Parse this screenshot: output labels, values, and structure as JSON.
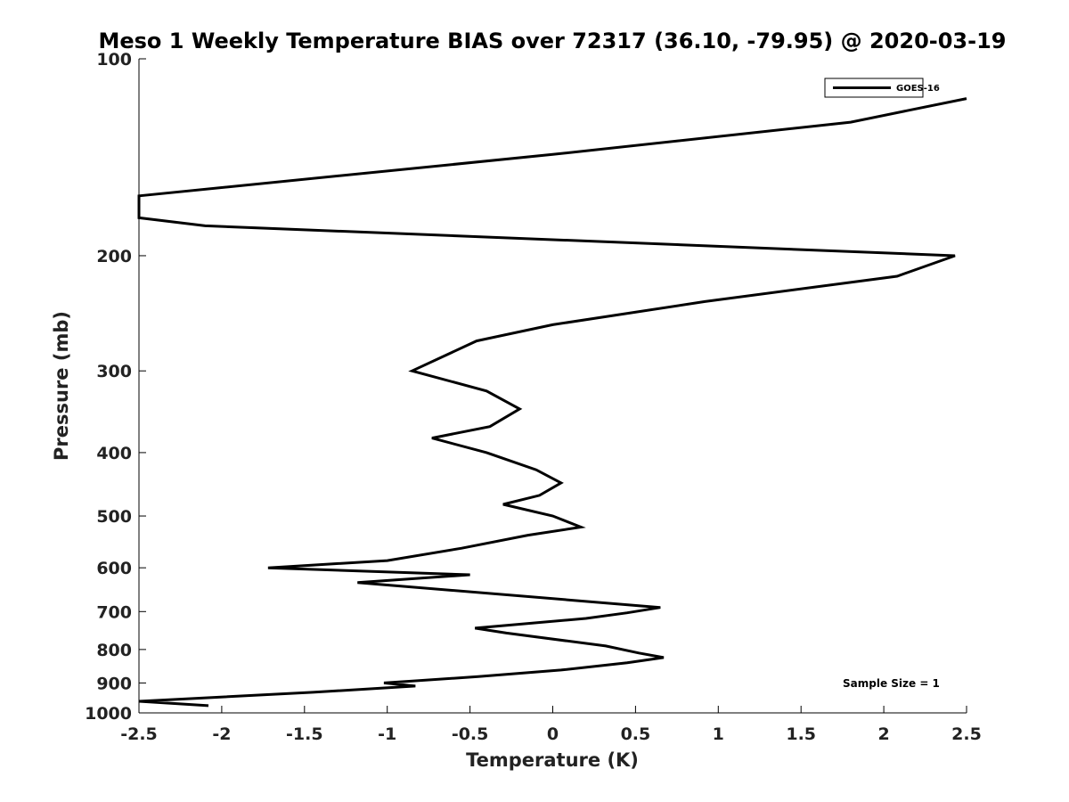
{
  "chart_data": {
    "type": "line",
    "title": "Meso 1 Weekly Temperature BIAS over 72317 (36.10, -79.95) @ 2020-03-19",
    "xlabel": "Temperature (K)",
    "ylabel": "Pressure (mb)",
    "xlim": [
      -2.5,
      2.5
    ],
    "ylim": [
      100,
      1000
    ],
    "yscale": "log",
    "y_reversed": true,
    "grid": false,
    "legend_position": "top-right",
    "xticks": [
      -2.5,
      -2,
      -1.5,
      -1,
      -0.5,
      0,
      0.5,
      1,
      1.5,
      2,
      2.5
    ],
    "xtick_labels": [
      "-2.5",
      "-2",
      "-1.5",
      "-1",
      "-0.5",
      "0",
      "0.5",
      "1",
      "1.5",
      "2",
      "2.5"
    ],
    "yticks": [
      100,
      200,
      300,
      400,
      500,
      600,
      700,
      800,
      900,
      1000
    ],
    "ytick_labels": [
      "100",
      "200",
      "300",
      "400",
      "500",
      "600",
      "700",
      "800",
      "900",
      "1000"
    ],
    "annotation": "Sample Size = 1",
    "series": [
      {
        "name": "GOES-16",
        "color": "#000000",
        "points": [
          {
            "x": 2.5,
            "y": 115
          },
          {
            "x": 1.8,
            "y": 125
          },
          {
            "x": 0.0,
            "y": 140
          },
          {
            "x": -2.5,
            "y": 162
          },
          {
            "x": -2.5,
            "y": 175
          },
          {
            "x": -2.1,
            "y": 180
          },
          {
            "x": 2.43,
            "y": 200
          },
          {
            "x": 2.08,
            "y": 215
          },
          {
            "x": 0.92,
            "y": 235
          },
          {
            "x": 0.0,
            "y": 255
          },
          {
            "x": -0.46,
            "y": 270
          },
          {
            "x": -0.85,
            "y": 300
          },
          {
            "x": -0.4,
            "y": 322
          },
          {
            "x": -0.2,
            "y": 343
          },
          {
            "x": -0.38,
            "y": 365
          },
          {
            "x": -0.73,
            "y": 380
          },
          {
            "x": -0.4,
            "y": 400
          },
          {
            "x": -0.1,
            "y": 425
          },
          {
            "x": 0.05,
            "y": 445
          },
          {
            "x": -0.08,
            "y": 465
          },
          {
            "x": -0.3,
            "y": 480
          },
          {
            "x": 0.0,
            "y": 500
          },
          {
            "x": 0.17,
            "y": 520
          },
          {
            "x": -0.15,
            "y": 535
          },
          {
            "x": -0.55,
            "y": 560
          },
          {
            "x": -1.0,
            "y": 585
          },
          {
            "x": -1.72,
            "y": 600
          },
          {
            "x": -0.5,
            "y": 615
          },
          {
            "x": -1.18,
            "y": 632
          },
          {
            "x": 0.65,
            "y": 690
          },
          {
            "x": 0.45,
            "y": 703
          },
          {
            "x": 0.2,
            "y": 717
          },
          {
            "x": -0.47,
            "y": 742
          },
          {
            "x": -0.28,
            "y": 755
          },
          {
            "x": 0.32,
            "y": 790
          },
          {
            "x": 0.52,
            "y": 810
          },
          {
            "x": 0.67,
            "y": 823
          },
          {
            "x": 0.45,
            "y": 838
          },
          {
            "x": 0.05,
            "y": 860
          },
          {
            "x": -0.45,
            "y": 880
          },
          {
            "x": -1.02,
            "y": 900
          },
          {
            "x": -0.83,
            "y": 910
          },
          {
            "x": -1.45,
            "y": 930
          },
          {
            "x": -2.5,
            "y": 960
          },
          {
            "x": -2.08,
            "y": 975
          }
        ]
      }
    ]
  }
}
